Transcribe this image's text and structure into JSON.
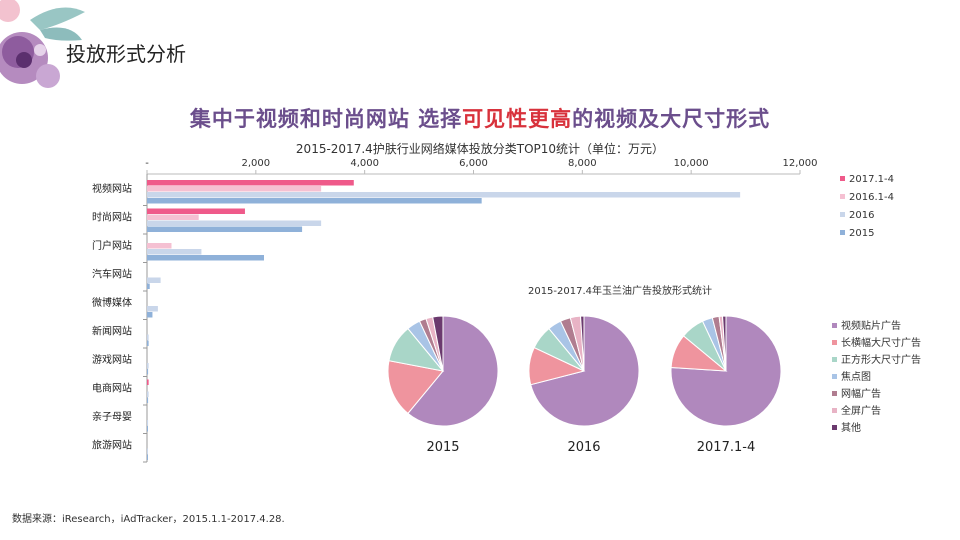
{
  "page": {
    "title": "投放形式分析",
    "headline_pre": "集中于视频和时尚网站 选择",
    "headline_highlight": "可见性更高",
    "headline_post": "的视频及大尺寸形式",
    "footnote": "数据来源：iResearch，iAdTracker，2015.1.1-2017.4.28."
  },
  "colors": {
    "accent_purple": "#6b4e8c",
    "highlight_red": "#d8323c",
    "s2017": "#ef5a8a",
    "s2016": "#f5c0d2",
    "s16b": "#c9d6ea",
    "s2015": "#8fb1d9",
    "pie": [
      "#b088bd",
      "#ef949e",
      "#a9d6c8",
      "#a9c4e6",
      "#b07d90",
      "#e8b3c5",
      "#6b3a6e"
    ]
  },
  "chart_data": [
    {
      "type": "bar",
      "orientation": "horizontal",
      "title": "2015-2017.4护肤行业网络媒体投放分类TOP10统计（单位：万元）",
      "categories": [
        "视频网站",
        "时尚网站",
        "门户网站",
        "汽车网站",
        "微博媒体",
        "新闻网站",
        "游戏网站",
        "电商网站",
        "亲子母婴",
        "旅游网站"
      ],
      "xticks": [
        "-",
        "2,000",
        "4,000",
        "6,000",
        "8,000",
        "10,000",
        "12,000"
      ],
      "xlim": [
        0,
        12000
      ],
      "legend_position": "right",
      "series": [
        {
          "name": "2017.1-4",
          "values": [
            3800,
            1800,
            0,
            0,
            0,
            0,
            0,
            30,
            0,
            0
          ]
        },
        {
          "name": "2016.1-4",
          "values": [
            3200,
            950,
            450,
            0,
            0,
            0,
            0,
            0,
            0,
            0
          ]
        },
        {
          "name": "2016",
          "values": [
            10900,
            3200,
            1000,
            250,
            200,
            30,
            30,
            30,
            20,
            10
          ]
        },
        {
          "name": "2015",
          "values": [
            6150,
            2850,
            2150,
            50,
            100,
            30,
            20,
            20,
            10,
            10
          ]
        }
      ]
    },
    {
      "type": "pie",
      "title": "2015-2017.4年玉兰油广告投放形式统计",
      "legend_position": "right",
      "labels": [
        "视频贴片广告",
        "长横幅大尺寸广告",
        "正方形大尺寸广告",
        "焦点图",
        "网幅广告",
        "全屏广告",
        "其他"
      ],
      "pies": [
        {
          "name": "2015",
          "values": [
            61,
            17,
            11,
            4,
            2,
            2,
            3
          ]
        },
        {
          "name": "2016",
          "values": [
            71,
            11,
            7,
            4,
            3,
            3,
            1
          ]
        },
        {
          "name": "2017.1-4",
          "values": [
            76,
            10,
            7,
            3,
            2,
            1,
            1
          ]
        }
      ]
    }
  ]
}
